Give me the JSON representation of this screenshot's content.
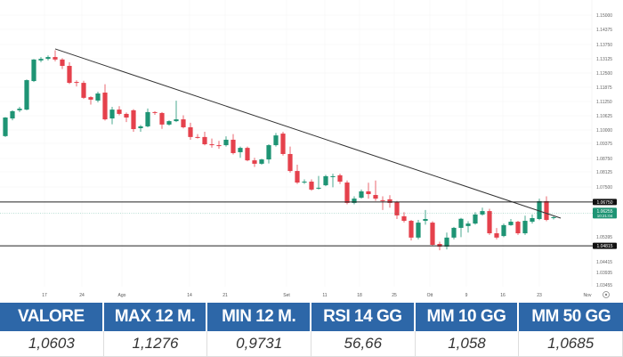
{
  "chart_data": {
    "type": "candlestick",
    "y_ticks": [
      "1.15000",
      "1.14375",
      "1.13750",
      "1.13125",
      "1.12500",
      "1.11875",
      "1.11250",
      "1.10625",
      "1.10000",
      "1.09375",
      "1.08750",
      "1.08125",
      "1.07500",
      "1.05395",
      "1.04415",
      "1.03935",
      "1.03455"
    ],
    "x_ticks": [
      "17",
      "24",
      "Ago",
      "14",
      "21",
      "Set",
      "11",
      "18",
      "25",
      "Ott",
      "9",
      "16",
      "23",
      "Nov"
    ],
    "grid": true,
    "colors": {
      "up": "#1e9474",
      "down": "#e5414c",
      "line": "#333333",
      "current": "#1e9474"
    },
    "candles": [
      [
        1.0966,
        1.105,
        1.0962,
        1.1048
      ],
      [
        1.1044,
        1.108,
        1.1036,
        1.1076
      ],
      [
        1.108,
        1.1095,
        1.1072,
        1.1087
      ],
      [
        1.1083,
        1.1216,
        1.108,
        1.1213
      ],
      [
        1.1209,
        1.1306,
        1.1205,
        1.1304
      ],
      [
        1.13,
        1.1315,
        1.1292,
        1.1307
      ],
      [
        1.1307,
        1.1322,
        1.13,
        1.1315
      ],
      [
        1.1315,
        1.1345,
        1.1296,
        1.1304
      ],
      [
        1.1304,
        1.131,
        1.1262,
        1.1276
      ],
      [
        1.1276,
        1.1292,
        1.1196,
        1.1201
      ],
      [
        1.1205,
        1.1212,
        1.1185,
        1.1201
      ],
      [
        1.1201,
        1.121,
        1.113,
        1.1135
      ],
      [
        1.1138,
        1.1142,
        1.1105,
        1.1127
      ],
      [
        1.1123,
        1.1162,
        1.1115,
        1.1154
      ],
      [
        1.1158,
        1.1195,
        1.1035,
        1.104
      ],
      [
        1.1044,
        1.1095,
        1.1018,
        1.1083
      ],
      [
        1.1083,
        1.1098,
        1.1058,
        1.1064
      ],
      [
        1.1064,
        1.107,
        1.1028,
        1.1048
      ],
      [
        1.108,
        1.1085,
        1.0985,
        1.0997
      ],
      [
        1.1001,
        1.1015,
        1.0985,
        1.1009
      ],
      [
        1.1009,
        1.1088,
        1.1005,
        1.1072
      ],
      [
        1.1072,
        1.1076,
        1.106,
        1.1068
      ],
      [
        1.1068,
        1.1072,
        1.0998,
        1.1017
      ],
      [
        1.1017,
        1.1036,
        1.1012,
        1.1032
      ],
      [
        1.1032,
        1.1122,
        1.1028,
        1.104
      ],
      [
        1.104,
        1.1058,
        1.1,
        1.1005
      ],
      [
        1.1005,
        1.1025,
        1.095,
        1.0962
      ],
      [
        1.0962,
        1.0975,
        1.0955,
        1.0958
      ],
      [
        1.0962,
        1.0985,
        1.0925,
        1.093
      ],
      [
        1.093,
        1.0955,
        1.0915,
        1.0926
      ],
      [
        1.0926,
        1.0945,
        1.091,
        1.0922
      ],
      [
        1.0926,
        1.0965,
        1.092,
        1.095
      ],
      [
        1.095,
        1.0975,
        1.0885,
        1.0891
      ],
      [
        1.0895,
        1.092,
        1.087,
        1.0914
      ],
      [
        1.0914,
        1.092,
        1.0855,
        1.0859
      ],
      [
        1.0859,
        1.087,
        1.083,
        1.0844
      ],
      [
        1.0844,
        1.0866,
        1.084,
        1.0863
      ],
      [
        1.0863,
        1.093,
        1.0845,
        1.0926
      ],
      [
        1.0926,
        1.098,
        1.092,
        1.0969
      ],
      [
        1.0977,
        1.0985,
        1.088,
        1.0887
      ],
      [
        1.0887,
        1.092,
        1.0805,
        1.0812
      ],
      [
        1.0812,
        1.084,
        1.0755,
        1.0761
      ],
      [
        1.0761,
        1.0775,
        1.0755,
        1.0765
      ],
      [
        1.0765,
        1.0775,
        1.0725,
        1.073
      ],
      [
        1.0734,
        1.079,
        1.073,
        1.0738
      ],
      [
        1.0749,
        1.0795,
        1.0745,
        1.0789
      ],
      [
        1.0785,
        1.08,
        1.074,
        1.0789
      ],
      [
        1.0793,
        1.08,
        1.0755,
        1.0765
      ],
      [
        1.0761,
        1.077,
        1.0665,
        1.0671
      ],
      [
        1.0671,
        1.07,
        1.0665,
        1.069
      ],
      [
        1.0694,
        1.073,
        1.069,
        1.0722
      ],
      [
        1.0722,
        1.076,
        1.069,
        1.071
      ],
      [
        1.0706,
        1.077,
        1.068,
        1.069
      ],
      [
        1.0683,
        1.07,
        1.064,
        1.0679
      ],
      [
        1.0687,
        1.0705,
        1.065,
        1.0671
      ],
      [
        1.0675,
        1.068,
        1.06,
        1.0616
      ],
      [
        1.0612,
        1.063,
        1.0585,
        1.0592
      ],
      [
        1.0592,
        1.0596,
        1.0505,
        1.0518
      ],
      [
        1.0518,
        1.0596,
        1.051,
        1.0584
      ],
      [
        1.0592,
        1.064,
        1.0575,
        1.06
      ],
      [
        1.0584,
        1.059,
        1.048,
        1.0486
      ],
      [
        1.049,
        1.05,
        1.0462,
        1.0478
      ],
      [
        1.0478,
        1.054,
        1.0466,
        1.0518
      ],
      [
        1.0518,
        1.0565,
        1.051,
        1.0561
      ],
      [
        1.0561,
        1.0605,
        1.052,
        1.0601
      ],
      [
        1.0569,
        1.059,
        1.054,
        1.058
      ],
      [
        1.058,
        1.063,
        1.0575,
        1.062
      ],
      [
        1.062,
        1.065,
        1.0615,
        1.0635
      ],
      [
        1.0635,
        1.0645,
        1.053,
        1.0537
      ],
      [
        1.0537,
        1.056,
        1.051,
        1.0518
      ],
      [
        1.0525,
        1.058,
        1.052,
        1.0573
      ],
      [
        1.0573,
        1.06,
        1.057,
        1.0588
      ],
      [
        1.0588,
        1.0592,
        1.053,
        1.0537
      ],
      [
        1.0537,
        1.0615,
        1.053,
        1.0592
      ],
      [
        1.0588,
        1.062,
        1.058,
        1.0604
      ],
      [
        1.06,
        1.069,
        1.0595,
        1.0679
      ],
      [
        1.0679,
        1.07,
        1.059,
        1.0596
      ],
      [
        1.0604,
        1.0612,
        1.0598,
        1.0608
      ]
    ],
    "trendline": {
      "from": {
        "candle": 7,
        "price": 1.1351
      },
      "to": {
        "candle": 78,
        "price": 1.0604
      }
    },
    "levels": [
      {
        "price": 1.0675,
        "label": "1.06750"
      },
      {
        "price": 1.04815,
        "label": "1.04815"
      }
    ],
    "current": {
      "price": 1.0626,
      "label": "1.06255",
      "time": "10:21:04"
    }
  },
  "stats": {
    "headers": [
      "VALORE",
      "MAX 12 M.",
      "MIN 12 M.",
      "RSI 14 GG",
      "MM 10 GG",
      "MM 50 GG"
    ],
    "values": [
      "1,0603",
      "1,1276",
      "0,9731",
      "56,66",
      "1,058",
      "1,0685"
    ]
  }
}
